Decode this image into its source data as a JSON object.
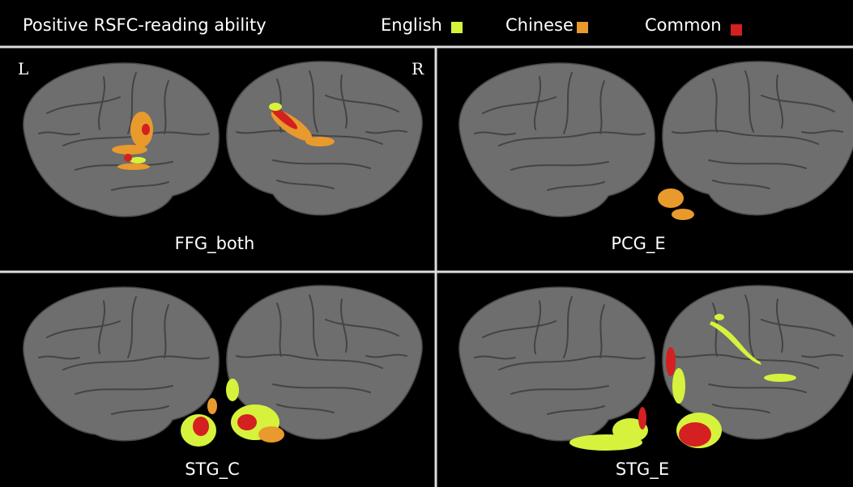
{
  "header": {
    "title": "Positive RSFC-reading ability",
    "legend": [
      {
        "label": "English",
        "color": "#d6f23c"
      },
      {
        "label": "Chinese",
        "color": "#e99a2c"
      },
      {
        "label": "Common",
        "color": "#d42020"
      }
    ]
  },
  "hemisphere_labels": {
    "left": "L",
    "right": "R"
  },
  "panels": [
    {
      "label": "FFG_both"
    },
    {
      "label": "PCG_E"
    },
    {
      "label": "STG_C"
    },
    {
      "label": "STG_E"
    }
  ]
}
